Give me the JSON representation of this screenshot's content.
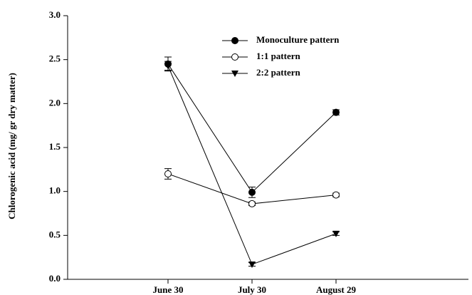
{
  "chart_data": {
    "type": "line",
    "y_label": "Chlorogenic acid (mg/ gr dry matter)",
    "categories": [
      "June 30",
      "July 30",
      "August 29"
    ],
    "series": [
      {
        "name": "Monoculture pattern",
        "marker": "filled-circle",
        "color": "#000000",
        "values": [
          2.45,
          0.99,
          1.9
        ],
        "errors": [
          0.08,
          0.06,
          0.03
        ]
      },
      {
        "name": "1:1 pattern",
        "marker": "open-circle",
        "color": "#000000",
        "values": [
          1.2,
          0.86,
          0.96
        ],
        "errors": [
          0.06,
          0.02,
          0.02
        ]
      },
      {
        "name": "2:2 pattern",
        "marker": "filled-triangle",
        "color": "#000000",
        "values": [
          2.43,
          0.17,
          0.52
        ],
        "errors": [
          0.05,
          0.02,
          0.02
        ]
      }
    ],
    "ylim": [
      0,
      3
    ],
    "yticks": [
      {
        "value": 0,
        "label": "0.0"
      },
      {
        "value": 0.5,
        "label": "0.5"
      },
      {
        "value": 1,
        "label": "1.0"
      },
      {
        "value": 1.5,
        "label": "1.5"
      },
      {
        "value": 2,
        "label": "2.0"
      },
      {
        "value": 2.5,
        "label": "2.5"
      },
      {
        "value": 3,
        "label": "3.0"
      }
    ],
    "legend": "upper-center"
  }
}
